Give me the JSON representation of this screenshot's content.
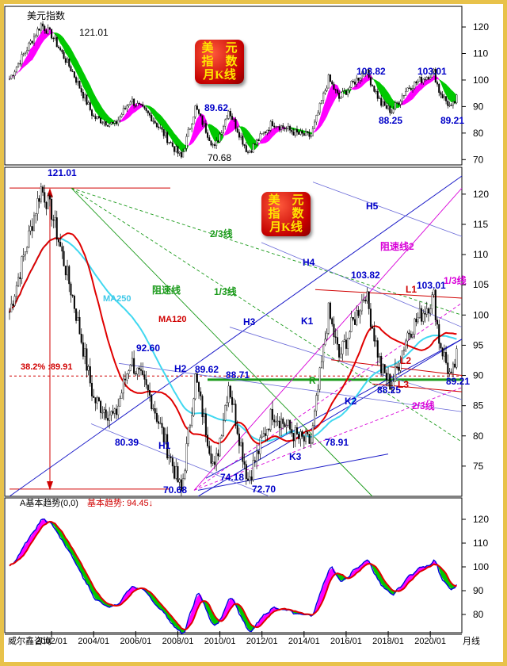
{
  "colors": {
    "price": "#000000",
    "ma_fast": "#ff00ff",
    "ma_band": "#00c800",
    "ma250": "#40d8f0",
    "ma120": "#e00000",
    "blue_text": "#0000c8",
    "green_text": "#1a9a1a",
    "magenta_text": "#d800d8",
    "red_text": "#d00000",
    "axis_text": "#000000"
  },
  "top_panel": {
    "title": "美元指数",
    "badge": {
      "line1": "美　元",
      "line2": "指　数",
      "line3": "月K线"
    },
    "labels": {
      "peak": "121.01",
      "low": "70.68",
      "p1": "89.62",
      "p2": "103.82",
      "p3": "88.25",
      "p4": "103.01",
      "p5": "89.21"
    }
  },
  "main_panel": {
    "badge": {
      "line1": "美　元",
      "line2": "指　数",
      "line3": "月K线"
    },
    "price_labels": {
      "peak": "121.01",
      "p9260": "92.60",
      "p8039": "80.39",
      "p8962": "89.62",
      "p8871": "88.71",
      "p7068": "70.68",
      "p7418": "74.18",
      "p7270": "72.70",
      "p7891": "78.91",
      "p10382": "103.82",
      "p8825": "88.25",
      "p10301": "103.01",
      "p8921": "89.21"
    },
    "line_labels": {
      "h1": "H1",
      "h2": "H2",
      "h3": "H3",
      "h4": "H4",
      "h5": "H5",
      "k1": "K1",
      "k2": "K2",
      "k3": "K3",
      "l1": "L1",
      "l2": "L2",
      "l3": "L3",
      "r": "R",
      "two_thirds_green": "2/3线",
      "one_third_green": "1/3线",
      "resist_green": "阻速线",
      "resist2": "阻速线2",
      "one_third_magenta": "1/3线",
      "two_thirds_magenta": "2/3线"
    },
    "ma250_label": "MA250",
    "ma120_label": "MA120",
    "fib_label": "38.2% :89.91"
  },
  "bottom_panel": {
    "indicator_name": "A基本趋势(0,0)",
    "indicator_value_label": "基本趋势: 94.45↓"
  },
  "x_axis": {
    "ticks": [
      "2002/01",
      "2004/01",
      "2006/01",
      "2008/01",
      "2010/01",
      "2012/01",
      "2014/01",
      "2016/01",
      "2018/01",
      "2020/01"
    ],
    "unit": "月线",
    "source": "威尔鑫咨询"
  },
  "chart_data": [
    {
      "type": "line",
      "title": "美元指数",
      "xlabel": "",
      "ylabel": "",
      "x": [
        "2000/01",
        "2001/07",
        "2002/01",
        "2003/01",
        "2004/01",
        "2005/01",
        "2005/10",
        "2006/10",
        "2008/03",
        "2008/11",
        "2009/10",
        "2010/06",
        "2011/05",
        "2012/07",
        "2013/10",
        "2014/05",
        "2015/03",
        "2015/09",
        "2016/12",
        "2017/09",
        "2018/03",
        "2018/12",
        "2020/03",
        "2020/06",
        "2021/01",
        "2021/04"
      ],
      "y": [
        100.5,
        121.01,
        117,
        103,
        86,
        83,
        92.6,
        86,
        70.68,
        89.62,
        74.18,
        88.71,
        72.7,
        84,
        79.5,
        78.91,
        100.5,
        93,
        103.82,
        91,
        88.25,
        97,
        103.01,
        96,
        89.21,
        93
      ],
      "ylim": [
        68,
        123
      ],
      "yticks": [
        70,
        80,
        90,
        100,
        110,
        120
      ]
    },
    {
      "type": "line",
      "title": "",
      "xlabel": "",
      "ylabel": "",
      "x": [
        "2000/01",
        "2001/07",
        "2002/01",
        "2003/01",
        "2004/01",
        "2005/01",
        "2005/10",
        "2006/10",
        "2008/03",
        "2008/11",
        "2009/10",
        "2010/06",
        "2011/05",
        "2012/07",
        "2013/10",
        "2014/05",
        "2015/03",
        "2015/09",
        "2016/12",
        "2017/09",
        "2018/03",
        "2018/12",
        "2020/03",
        "2020/06",
        "2021/01",
        "2021/04"
      ],
      "y": [
        100.5,
        121.01,
        117,
        103,
        86,
        83,
        92.6,
        86,
        70.68,
        89.62,
        74.18,
        88.71,
        72.7,
        84,
        79.5,
        78.91,
        100.5,
        93,
        103.82,
        91,
        88.25,
        97,
        103.01,
        96,
        89.21,
        93
      ],
      "ylim": [
        70,
        123
      ],
      "yticks": [
        75,
        80,
        85,
        90,
        95,
        100,
        105,
        110,
        115,
        120
      ],
      "fib_level": 89.91
    },
    {
      "type": "line",
      "title": "A基本趋势(0,0)",
      "xlabel": "",
      "ylabel": "",
      "series": [
        {
          "name": "基本趋势",
          "last_value": 94.45
        }
      ],
      "ylim": [
        73,
        125
      ],
      "yticks": [
        80,
        90,
        100,
        110,
        120
      ]
    }
  ]
}
